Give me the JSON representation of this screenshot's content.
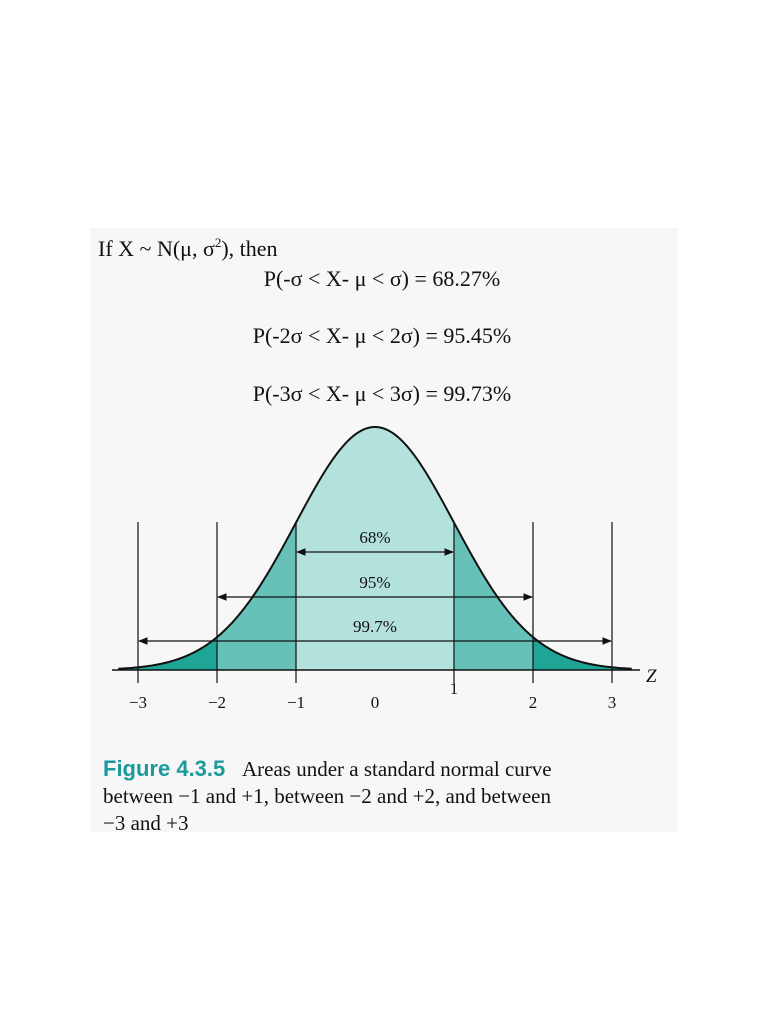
{
  "header": {
    "intro": [
      "If X ~ N(μ, σ",
      "2",
      "), then"
    ]
  },
  "formulas": [
    "P(-σ < X- μ < σ) = 68.27%",
    "P(-2σ < X- μ < 2σ) = 95.45%",
    "P(-3σ < X- μ < 3σ) = 99.73%"
  ],
  "figure": {
    "intervals": [
      "68%",
      "95%",
      "99.7%"
    ],
    "tick_labels": [
      "−3",
      "−2",
      "−1",
      "0",
      "1",
      "2",
      "3"
    ],
    "axis_label": "Z"
  },
  "caption": {
    "label": "Figure 4.3.5",
    "lines": [
      "Areas under a standard normal curve",
      "between −1 and +1, between −2 and +2, and between",
      "−3 and +3"
    ]
  }
}
